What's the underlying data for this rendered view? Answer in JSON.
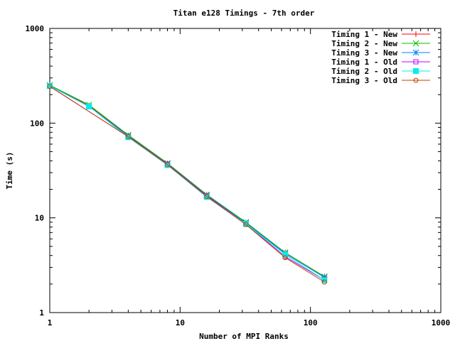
{
  "chart_data": {
    "type": "line",
    "title": "Titan e128 Timings - 7th order",
    "xlabel": "Number of MPI Ranks",
    "ylabel": "Time (s)",
    "xscale": "log",
    "yscale": "log",
    "xlim": [
      1,
      1000
    ],
    "ylim": [
      1,
      1000
    ],
    "xticks": [
      1,
      10,
      100,
      1000
    ],
    "yticks": [
      1,
      10,
      100,
      1000
    ],
    "xtick_labels": [
      "1",
      "10",
      "100",
      "1000"
    ],
    "ytick_labels": [
      "1",
      "10",
      "100",
      "1000"
    ],
    "grid": false,
    "legend_position": "top-right",
    "series": [
      {
        "name": "Timing 1 - New",
        "color": "#ff0000",
        "marker": "plus",
        "x": [
          1,
          2,
          4,
          8,
          16,
          32,
          64,
          128
        ],
        "y": [
          250,
          153,
          74,
          37.5,
          17.5,
          8.9,
          4.3,
          2.4
        ]
      },
      {
        "name": "Timing 2 - New",
        "color": "#00c000",
        "marker": "cross",
        "x": [
          1,
          2,
          4,
          8,
          16,
          32,
          64,
          128
        ],
        "y": [
          252,
          156,
          75,
          37.8,
          17.6,
          9.0,
          4.3,
          2.4
        ]
      },
      {
        "name": "Timing 3 - New",
        "color": "#0080ff",
        "marker": "star",
        "x": [
          1,
          2,
          4,
          8,
          16,
          32,
          64,
          128
        ],
        "y": [
          248,
          150,
          73,
          37,
          17.2,
          8.8,
          4.2,
          2.35
        ]
      },
      {
        "name": "Timing 1 - Old",
        "color": "#c000ff",
        "marker": "square",
        "x": [
          1,
          4,
          8,
          16,
          32,
          64,
          128
        ],
        "y": [
          245,
          72,
          37,
          17,
          8.6,
          3.9,
          2.2
        ]
      },
      {
        "name": "Timing 2 - Old",
        "color": "#00eeee",
        "marker": "filled-square",
        "x": [
          1,
          2,
          4,
          8,
          16,
          32,
          64,
          128
        ],
        "y": [
          247,
          150,
          71,
          36,
          16.6,
          8.6,
          4.1,
          2.2
        ]
      },
      {
        "name": "Timing 3 - Old",
        "color": "#c04000",
        "marker": "circle",
        "x": [
          1,
          4,
          8,
          16,
          32,
          64,
          128
        ],
        "y": [
          244,
          72,
          36.5,
          16.8,
          8.5,
          3.8,
          2.1
        ]
      }
    ]
  }
}
